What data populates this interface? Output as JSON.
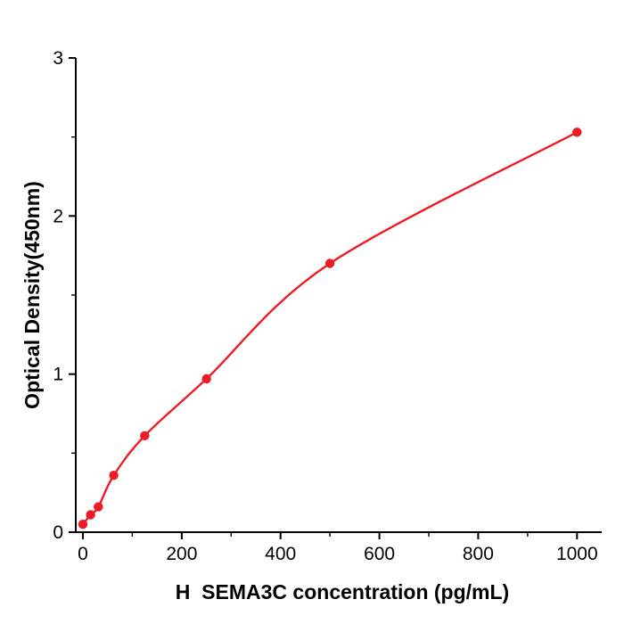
{
  "chart_data": {
    "type": "scatter",
    "title": "",
    "xlabel": "H  SEMA3C concentration (pg/mL)",
    "ylabel": "Optical Density(450nm)",
    "x": [
      0,
      15.6,
      31.25,
      62.5,
      125,
      250,
      500,
      1000
    ],
    "y": [
      0.05,
      0.11,
      0.16,
      0.36,
      0.61,
      0.97,
      1.7,
      2.53
    ],
    "xlim": [
      0,
      1050
    ],
    "ylim": [
      0,
      3
    ],
    "x_major_ticks": [
      0,
      200,
      400,
      600,
      800,
      1000
    ],
    "y_major_ticks": [
      0,
      1,
      2,
      3
    ],
    "x_minor_step": 100,
    "y_minor_step": 0.5,
    "grid": false,
    "legend": "none",
    "line_style": "smooth-fit-curve",
    "marker": "circle",
    "series_color": "#ed1c24",
    "axis_color": "#000000",
    "background_color": "#ffffff"
  }
}
